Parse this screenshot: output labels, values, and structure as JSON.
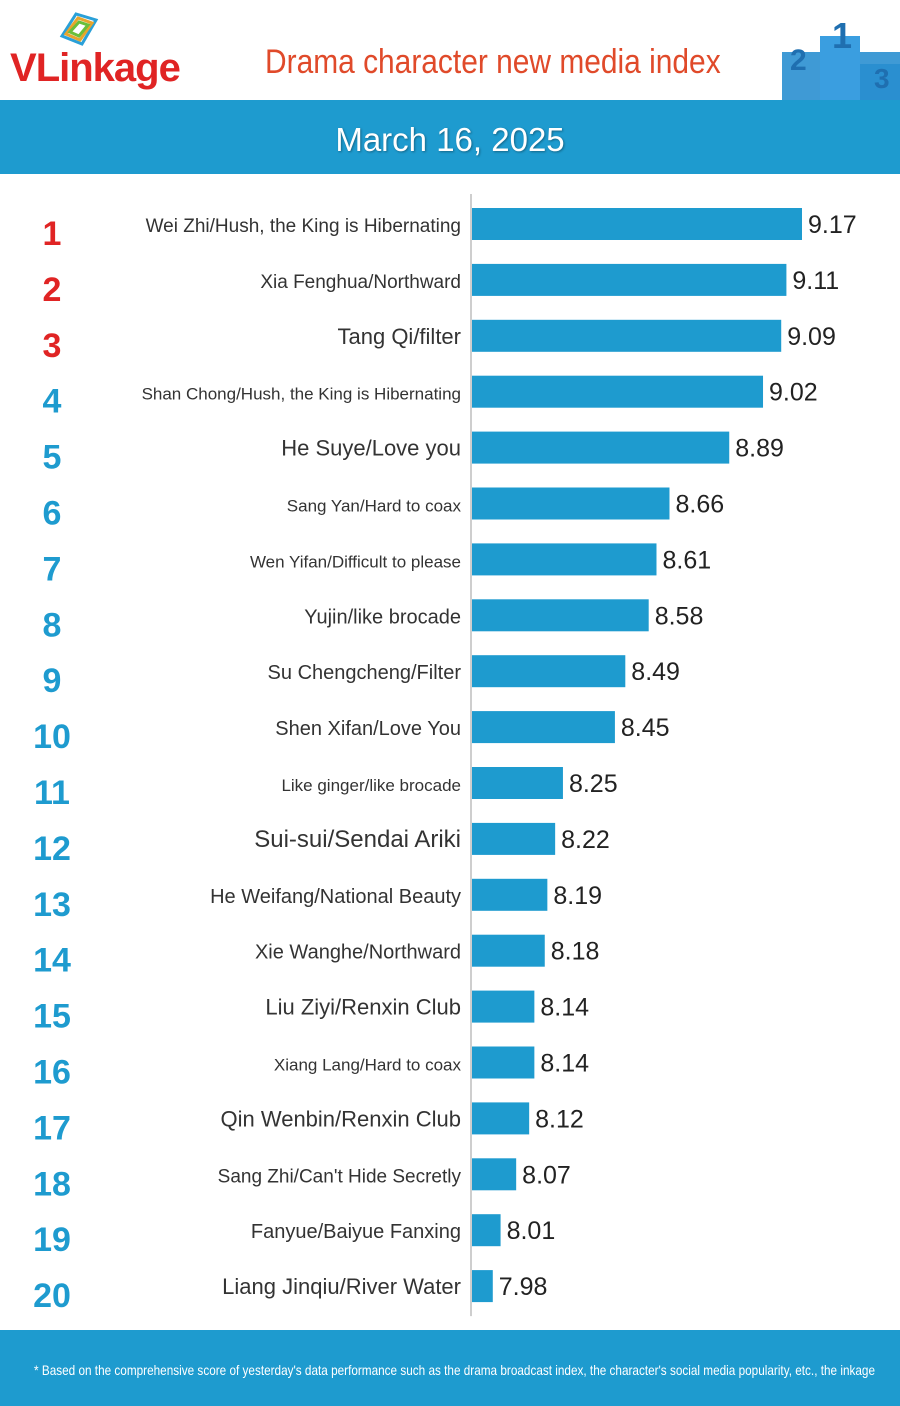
{
  "brand": {
    "logo_v": "V",
    "logo_rest": "Linkage"
  },
  "header": {
    "title": "Drama character new media index"
  },
  "date": "March 16, 2025",
  "colors": {
    "bar": "#1e9bcf",
    "band": "#1e9bcf",
    "top_rank": "#e02424",
    "rank": "#1e9bcf",
    "title": "#e04a2a"
  },
  "chart_data": {
    "type": "bar",
    "orientation": "horizontal",
    "ranks": [
      "1",
      "2",
      "3",
      "4",
      "5",
      "6",
      "7",
      "8",
      "9",
      "10",
      "11",
      "12",
      "13",
      "14",
      "15",
      "16",
      "17",
      "18",
      "19",
      "20"
    ],
    "categories": [
      "Wei Zhi/Hush, the King is Hibernating",
      "Xia Fenghua/Northward",
      "Tang Qi/filter",
      "Shan Chong/Hush, the King is Hibernating",
      "He Suye/Love you",
      "Sang Yan/Hard to coax",
      "Wen Yifan/Difficult to please",
      "Yujin/like brocade",
      "Su Chengcheng/Filter",
      "Shen Xifan/Love You",
      "Like ginger/like brocade",
      "Sui-sui/Sendai Ariki",
      "He Weifang/National Beauty",
      "Xie Wanghe/Northward",
      "Liu Ziyi/Renxin Club",
      "Xiang Lang/Hard to coax",
      "Qin Wenbin/Renxin Club",
      "Sang Zhi/Can't Hide Secretly",
      "Fanyue/Baiyue Fanxing",
      "Liang Jinqiu/River Water"
    ],
    "values": [
      9.17,
      9.11,
      9.09,
      9.02,
      8.89,
      8.66,
      8.61,
      8.58,
      8.49,
      8.45,
      8.25,
      8.22,
      8.19,
      8.18,
      8.14,
      8.14,
      8.12,
      8.07,
      8.01,
      7.98
    ],
    "value_labels": [
      "9.17",
      "9.11",
      "9.09",
      "9.02",
      "8.89",
      "8.66",
      "8.61",
      "8.58",
      "8.49",
      "8.45",
      "8.25",
      "8.22",
      "8.19",
      "8.18",
      "8.14",
      "8.14",
      "8.12",
      "8.07",
      "8.01",
      "7.98"
    ],
    "xlim": [
      7.9,
      9.17
    ],
    "grid": false,
    "legend": "none"
  },
  "footer": {
    "note": "* Based on the comprehensive score of yesterday's data performance such as the drama broadcast index, the character's social media popularity, etc., the inkage"
  }
}
